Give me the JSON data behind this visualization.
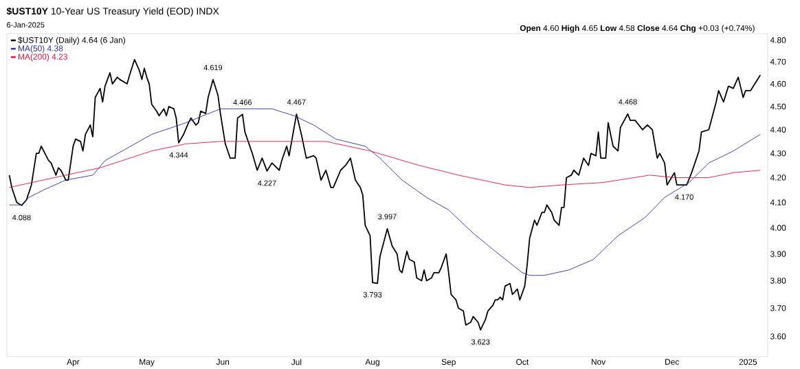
{
  "chart_data": {
    "type": "line",
    "title": "**$UST10Y** 10-Year US Treasury Yield (EOD) INDX",
    "subtitle": "6-Jan-2025",
    "log": "y",
    "legend": "top left",
    "xlim": [
      "2024-03-05",
      "2025-01-09"
    ],
    "xticks": [
      {
        "value": "2024-04-01",
        "label": "Apr"
      },
      {
        "value": "2024-05-01",
        "label": "May"
      },
      {
        "value": "2024-06-01",
        "label": "Jun"
      },
      {
        "value": "2024-07-01",
        "label": "Jul"
      },
      {
        "value": "2024-08-01",
        "label": "Aug"
      },
      {
        "value": "2024-09-01",
        "label": "Sep"
      },
      {
        "value": "2024-10-01",
        "label": "Oct"
      },
      {
        "value": "2024-11-01",
        "label": "Nov"
      },
      {
        "value": "2024-12-01",
        "label": "Dec"
      },
      {
        "value": "2025-01-01",
        "label": "2025"
      }
    ],
    "ylim": [
      3.53,
      4.83
    ],
    "yticks": [
      {
        "value": 3.6,
        "label": "3.60"
      },
      {
        "value": 3.7,
        "label": "3.70"
      },
      {
        "value": 3.8,
        "label": "3.80"
      },
      {
        "value": 3.9,
        "label": "3.90"
      },
      {
        "value": 4.0,
        "label": "4.00"
      },
      {
        "value": 4.1,
        "label": "4.10"
      },
      {
        "value": 4.2,
        "label": "4.20"
      },
      {
        "value": 4.3,
        "label": "4.30"
      },
      {
        "value": 4.4,
        "label": "4.40"
      },
      {
        "value": 4.5,
        "label": "4.50"
      },
      {
        "value": 4.6,
        "label": "4.60"
      },
      {
        "value": 4.7,
        "label": "4.70"
      },
      {
        "value": 4.8,
        "label": "4.80"
      }
    ],
    "series": [
      {
        "name": "$UST10Y (Daily) 4.64 (6 Jan)",
        "color": "#000000",
        "x": [
          "2024-03-06",
          "2024-03-07",
          "2024-03-09",
          "2024-03-11",
          "2024-03-13",
          "2024-03-15",
          "2024-03-17",
          "2024-03-18",
          "2024-03-19",
          "2024-03-21",
          "2024-03-22",
          "2024-03-23",
          "2024-03-25",
          "2024-03-26",
          "2024-03-27",
          "2024-03-29",
          "2024-03-30",
          "2024-04-01",
          "2024-04-02",
          "2024-04-04",
          "2024-04-05",
          "2024-04-06",
          "2024-04-08",
          "2024-04-09",
          "2024-04-10",
          "2024-04-12",
          "2024-04-13",
          "2024-04-14",
          "2024-04-16",
          "2024-04-17",
          "2024-04-19",
          "2024-04-20",
          "2024-04-23",
          "2024-04-24",
          "2024-04-26",
          "2024-04-28",
          "2024-04-29",
          "2024-04-30",
          "2024-05-01",
          "2024-05-02",
          "2024-05-03",
          "2024-05-05",
          "2024-05-06",
          "2024-05-08",
          "2024-05-09",
          "2024-05-10",
          "2024-05-12",
          "2024-05-13",
          "2024-05-14",
          "2024-05-16",
          "2024-05-18",
          "2024-05-19",
          "2024-05-21",
          "2024-05-22",
          "2024-05-23",
          "2024-05-25",
          "2024-05-26",
          "2024-05-28",
          "2024-05-30",
          "2024-05-31",
          "2024-06-02",
          "2024-06-04",
          "2024-06-06",
          "2024-06-07",
          "2024-06-09",
          "2024-06-10",
          "2024-06-13",
          "2024-06-15",
          "2024-06-17",
          "2024-06-19",
          "2024-06-21",
          "2024-06-24",
          "2024-06-25",
          "2024-06-27",
          "2024-06-28",
          "2024-07-01",
          "2024-07-03",
          "2024-07-05",
          "2024-07-08",
          "2024-07-09",
          "2024-07-11",
          "2024-07-13",
          "2024-07-15",
          "2024-07-16",
          "2024-07-19",
          "2024-07-21",
          "2024-07-23",
          "2024-07-25",
          "2024-07-27",
          "2024-07-28",
          "2024-07-29",
          "2024-07-31",
          "2024-08-01",
          "2024-08-03",
          "2024-08-04",
          "2024-08-07",
          "2024-08-09",
          "2024-08-11",
          "2024-08-12",
          "2024-08-13",
          "2024-08-15",
          "2024-08-16",
          "2024-08-18",
          "2024-08-19",
          "2024-08-21",
          "2024-08-22",
          "2024-08-23",
          "2024-08-25",
          "2024-08-26",
          "2024-08-28",
          "2024-08-29",
          "2024-08-31",
          "2024-09-01",
          "2024-09-02",
          "2024-09-04",
          "2024-09-05",
          "2024-09-07",
          "2024-09-08",
          "2024-09-10",
          "2024-09-11",
          "2024-09-13",
          "2024-09-14",
          "2024-09-16",
          "2024-09-17",
          "2024-09-19",
          "2024-09-20",
          "2024-09-21",
          "2024-09-22",
          "2024-09-23",
          "2024-09-24",
          "2024-09-26",
          "2024-09-27",
          "2024-09-29",
          "2024-09-30",
          "2024-10-02",
          "2024-10-03",
          "2024-10-04",
          "2024-10-06",
          "2024-10-07",
          "2024-10-09",
          "2024-10-10",
          "2024-10-11",
          "2024-10-13",
          "2024-10-14",
          "2024-10-16",
          "2024-10-17",
          "2024-10-18",
          "2024-10-19",
          "2024-10-21",
          "2024-10-22",
          "2024-10-24",
          "2024-10-26",
          "2024-10-28",
          "2024-10-29",
          "2024-10-31",
          "2024-11-01",
          "2024-11-02",
          "2024-11-04",
          "2024-11-05",
          "2024-11-07",
          "2024-11-09",
          "2024-11-10",
          "2024-11-13",
          "2024-11-14",
          "2024-11-16",
          "2024-11-19",
          "2024-11-21",
          "2024-11-23",
          "2024-11-25",
          "2024-11-26",
          "2024-11-28",
          "2024-11-29",
          "2024-12-02",
          "2024-12-03",
          "2024-12-06",
          "2024-12-07",
          "2024-12-09",
          "2024-12-12",
          "2024-12-13",
          "2024-12-16",
          "2024-12-19",
          "2024-12-20",
          "2024-12-22",
          "2024-12-24",
          "2024-12-26",
          "2024-12-28",
          "2024-12-30",
          "2024-12-31",
          "2025-01-02",
          "2025-01-06"
        ],
        "values": [
          4.21,
          4.16,
          4.1,
          4.088,
          4.11,
          4.17,
          4.3,
          4.3,
          4.33,
          4.29,
          4.27,
          4.26,
          4.21,
          4.24,
          4.23,
          4.19,
          4.19,
          4.33,
          4.36,
          4.35,
          4.31,
          4.38,
          4.42,
          4.37,
          4.54,
          4.58,
          4.52,
          4.59,
          4.65,
          4.6,
          4.63,
          4.62,
          4.6,
          4.64,
          4.71,
          4.66,
          4.62,
          4.67,
          4.63,
          4.6,
          4.51,
          4.48,
          4.46,
          4.49,
          4.46,
          4.5,
          4.49,
          4.45,
          4.344,
          4.38,
          4.43,
          4.45,
          4.42,
          4.43,
          4.48,
          4.47,
          4.54,
          4.619,
          4.55,
          4.47,
          4.34,
          4.28,
          4.28,
          4.45,
          4.466,
          4.39,
          4.3,
          4.23,
          4.28,
          4.227,
          4.26,
          4.23,
          4.27,
          4.33,
          4.29,
          4.467,
          4.38,
          4.28,
          4.29,
          4.28,
          4.19,
          4.23,
          4.16,
          4.16,
          4.23,
          4.25,
          4.28,
          4.19,
          4.16,
          4.13,
          4.01,
          3.97,
          3.793,
          3.79,
          3.89,
          3.997,
          3.93,
          3.9,
          3.84,
          3.83,
          3.91,
          3.88,
          3.87,
          3.81,
          3.8,
          3.84,
          3.8,
          3.81,
          3.83,
          3.83,
          3.85,
          3.9,
          3.83,
          3.75,
          3.73,
          3.7,
          3.69,
          3.64,
          3.65,
          3.67,
          3.65,
          3.623,
          3.66,
          3.69,
          3.71,
          3.73,
          3.73,
          3.74,
          3.73,
          3.78,
          3.79,
          3.75,
          3.77,
          3.73,
          3.78,
          3.86,
          3.96,
          4.03,
          4.01,
          4.06,
          4.06,
          4.09,
          4.06,
          4.03,
          4.01,
          4.08,
          4.08,
          4.2,
          4.21,
          4.23,
          4.21,
          4.28,
          4.25,
          4.3,
          4.29,
          4.39,
          4.28,
          4.28,
          4.43,
          4.33,
          4.31,
          4.41,
          4.468,
          4.44,
          4.44,
          4.4,
          4.42,
          4.4,
          4.28,
          4.3,
          4.26,
          4.17,
          4.22,
          4.17,
          4.17,
          4.17,
          4.22,
          4.31,
          4.39,
          4.4,
          4.52,
          4.57,
          4.52,
          4.59,
          4.58,
          4.63,
          4.54,
          4.57,
          4.57,
          4.64
        ]
      },
      {
        "name": "MA(50) 4.38",
        "color": "#2e2ea8",
        "x": [
          "2024-03-06",
          "2024-03-11",
          "2024-03-14",
          "2024-03-20",
          "2024-03-29",
          "2024-04-09",
          "2024-04-14",
          "2024-04-21",
          "2024-05-03",
          "2024-05-17",
          "2024-05-31",
          "2024-06-05",
          "2024-06-10",
          "2024-06-21",
          "2024-06-30",
          "2024-07-08",
          "2024-07-17",
          "2024-07-29",
          "2024-08-04",
          "2024-08-13",
          "2024-08-23",
          "2024-09-01",
          "2024-09-11",
          "2024-09-20",
          "2024-10-01",
          "2024-10-04",
          "2024-10-10",
          "2024-10-20",
          "2024-10-30",
          "2024-11-09",
          "2024-11-20",
          "2024-11-28",
          "2024-12-08",
          "2024-12-16",
          "2024-12-26",
          "2025-01-06"
        ],
        "values": [
          4.09,
          4.09,
          4.12,
          4.15,
          4.19,
          4.21,
          4.27,
          4.31,
          4.38,
          4.43,
          4.49,
          4.49,
          4.49,
          4.49,
          4.46,
          4.42,
          4.36,
          4.33,
          4.28,
          4.19,
          4.12,
          4.07,
          3.98,
          3.91,
          3.83,
          3.82,
          3.82,
          3.84,
          3.88,
          3.97,
          4.04,
          4.12,
          4.18,
          4.26,
          4.31,
          4.38
        ]
      },
      {
        "name": "MA(200) 4.23",
        "color": "#e0143c",
        "x": [
          "2024-03-06",
          "2024-03-29",
          "2024-04-12",
          "2024-05-03",
          "2024-05-17",
          "2024-05-31",
          "2024-06-21",
          "2024-07-13",
          "2024-07-31",
          "2024-08-20",
          "2024-09-05",
          "2024-09-24",
          "2024-10-04",
          "2024-10-17",
          "2024-11-03",
          "2024-11-22",
          "2024-12-02",
          "2024-12-16",
          "2024-12-26",
          "2025-01-06"
        ],
        "values": [
          4.16,
          4.21,
          4.24,
          4.31,
          4.34,
          4.35,
          4.35,
          4.35,
          4.31,
          4.25,
          4.21,
          4.17,
          4.16,
          4.17,
          4.18,
          4.21,
          4.2,
          4.2,
          4.22,
          4.23
        ]
      }
    ],
    "annotations": [
      "**Open** 4.60 **High** 4.65 **Low** 4.58 **Close** 4.64 **Chg** +0.03 (+0.74%)",
      {
        "text": "4.088",
        "x": "2024-03-11",
        "y": 4.088
      },
      {
        "text": "4.344",
        "x": "2024-05-14",
        "y": 4.344
      },
      {
        "text": "4.619",
        "x": "2024-05-28",
        "y": 4.619
      },
      {
        "text": "4.466",
        "x": "2024-06-09",
        "y": 4.466
      },
      {
        "text": "4.227",
        "x": "2024-06-19",
        "y": 4.227
      },
      {
        "text": "4.467",
        "x": "2024-07-01",
        "y": 4.467
      },
      {
        "text": "3.793",
        "x": "2024-08-01",
        "y": 3.793
      },
      {
        "text": "3.997",
        "x": "2024-08-07",
        "y": 3.997
      },
      {
        "text": "3.623",
        "x": "2024-09-14",
        "y": 3.623
      },
      {
        "text": "4.468",
        "x": "2024-11-13",
        "y": 4.468
      },
      {
        "text": "4.170",
        "x": "2024-12-06",
        "y": 4.17
      }
    ]
  }
}
